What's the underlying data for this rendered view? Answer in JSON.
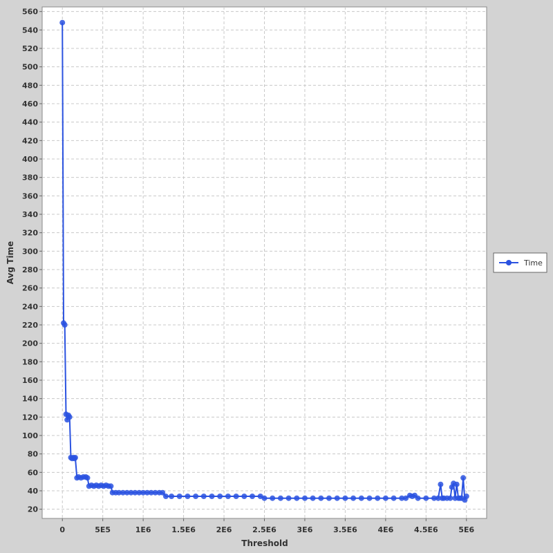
{
  "colors": {
    "background": "#d3d3d3",
    "plot_bg": "#ffffff",
    "grid": "#c8c8c8",
    "series": "#2a52e0",
    "axis": "#666666"
  },
  "chart_data": {
    "type": "line",
    "xlabel": "Threshold",
    "ylabel": "Avg Time",
    "xlim": [
      -250000,
      5250000
    ],
    "ylim": [
      10,
      565
    ],
    "x_ticks": [
      0,
      500000,
      1000000,
      1500000,
      2000000,
      2500000,
      3000000,
      3500000,
      4000000,
      4500000,
      5000000
    ],
    "x_tick_labels": [
      "0",
      "5E5",
      "1E6",
      "1.5E6",
      "2E6",
      "2.5E6",
      "3E6",
      "3.5E6",
      "4E6",
      "4.5E6",
      "5E6"
    ],
    "y_ticks": [
      20,
      40,
      60,
      80,
      100,
      120,
      140,
      160,
      180,
      200,
      220,
      240,
      260,
      280,
      300,
      320,
      340,
      360,
      380,
      400,
      420,
      440,
      460,
      480,
      500,
      520,
      540,
      560
    ],
    "grid": true,
    "legend_position": "right",
    "series": [
      {
        "name": "Time",
        "x": [
          0,
          15000,
          30000,
          45000,
          60000,
          75000,
          90000,
          105000,
          120000,
          135000,
          150000,
          160000,
          180000,
          200000,
          230000,
          260000,
          290000,
          310000,
          330000,
          360000,
          390000,
          420000,
          450000,
          480000,
          510000,
          540000,
          570000,
          600000,
          620000,
          660000,
          700000,
          750000,
          800000,
          850000,
          900000,
          950000,
          1000000,
          1050000,
          1100000,
          1150000,
          1200000,
          1240000,
          1280000,
          1350000,
          1450000,
          1550000,
          1650000,
          1750000,
          1850000,
          1950000,
          2050000,
          2150000,
          2250000,
          2350000,
          2450000,
          2500000,
          2600000,
          2700000,
          2800000,
          2900000,
          3000000,
          3100000,
          3200000,
          3300000,
          3400000,
          3500000,
          3600000,
          3700000,
          3800000,
          3900000,
          4000000,
          4100000,
          4200000,
          4250000,
          4300000,
          4330000,
          4360000,
          4400000,
          4500000,
          4600000,
          4650000,
          4680000,
          4700000,
          4720000,
          4760000,
          4800000,
          4820000,
          4840000,
          4860000,
          4880000,
          4900000,
          4920000,
          4940000,
          4960000,
          4980000,
          5000000
        ],
        "y": [
          548,
          222,
          220,
          123,
          117,
          122,
          120,
          76,
          75,
          76,
          75,
          76,
          54,
          55,
          54,
          55,
          55,
          54,
          45,
          46,
          45,
          46,
          45,
          46,
          45,
          46,
          45,
          45,
          38,
          38,
          38,
          38,
          38,
          38,
          38,
          38,
          38,
          38,
          38,
          38,
          38,
          38,
          34,
          34,
          34,
          34,
          34,
          34,
          34,
          34,
          34,
          34,
          34,
          34,
          34,
          32,
          32,
          32,
          32,
          32,
          32,
          32,
          32,
          32,
          32,
          32,
          32,
          32,
          32,
          32,
          32,
          32,
          32,
          32,
          35,
          34,
          35,
          32,
          32,
          32,
          32,
          47,
          32,
          32,
          32,
          32,
          44,
          48,
          32,
          47,
          32,
          32,
          32,
          54,
          30,
          34
        ]
      }
    ]
  }
}
